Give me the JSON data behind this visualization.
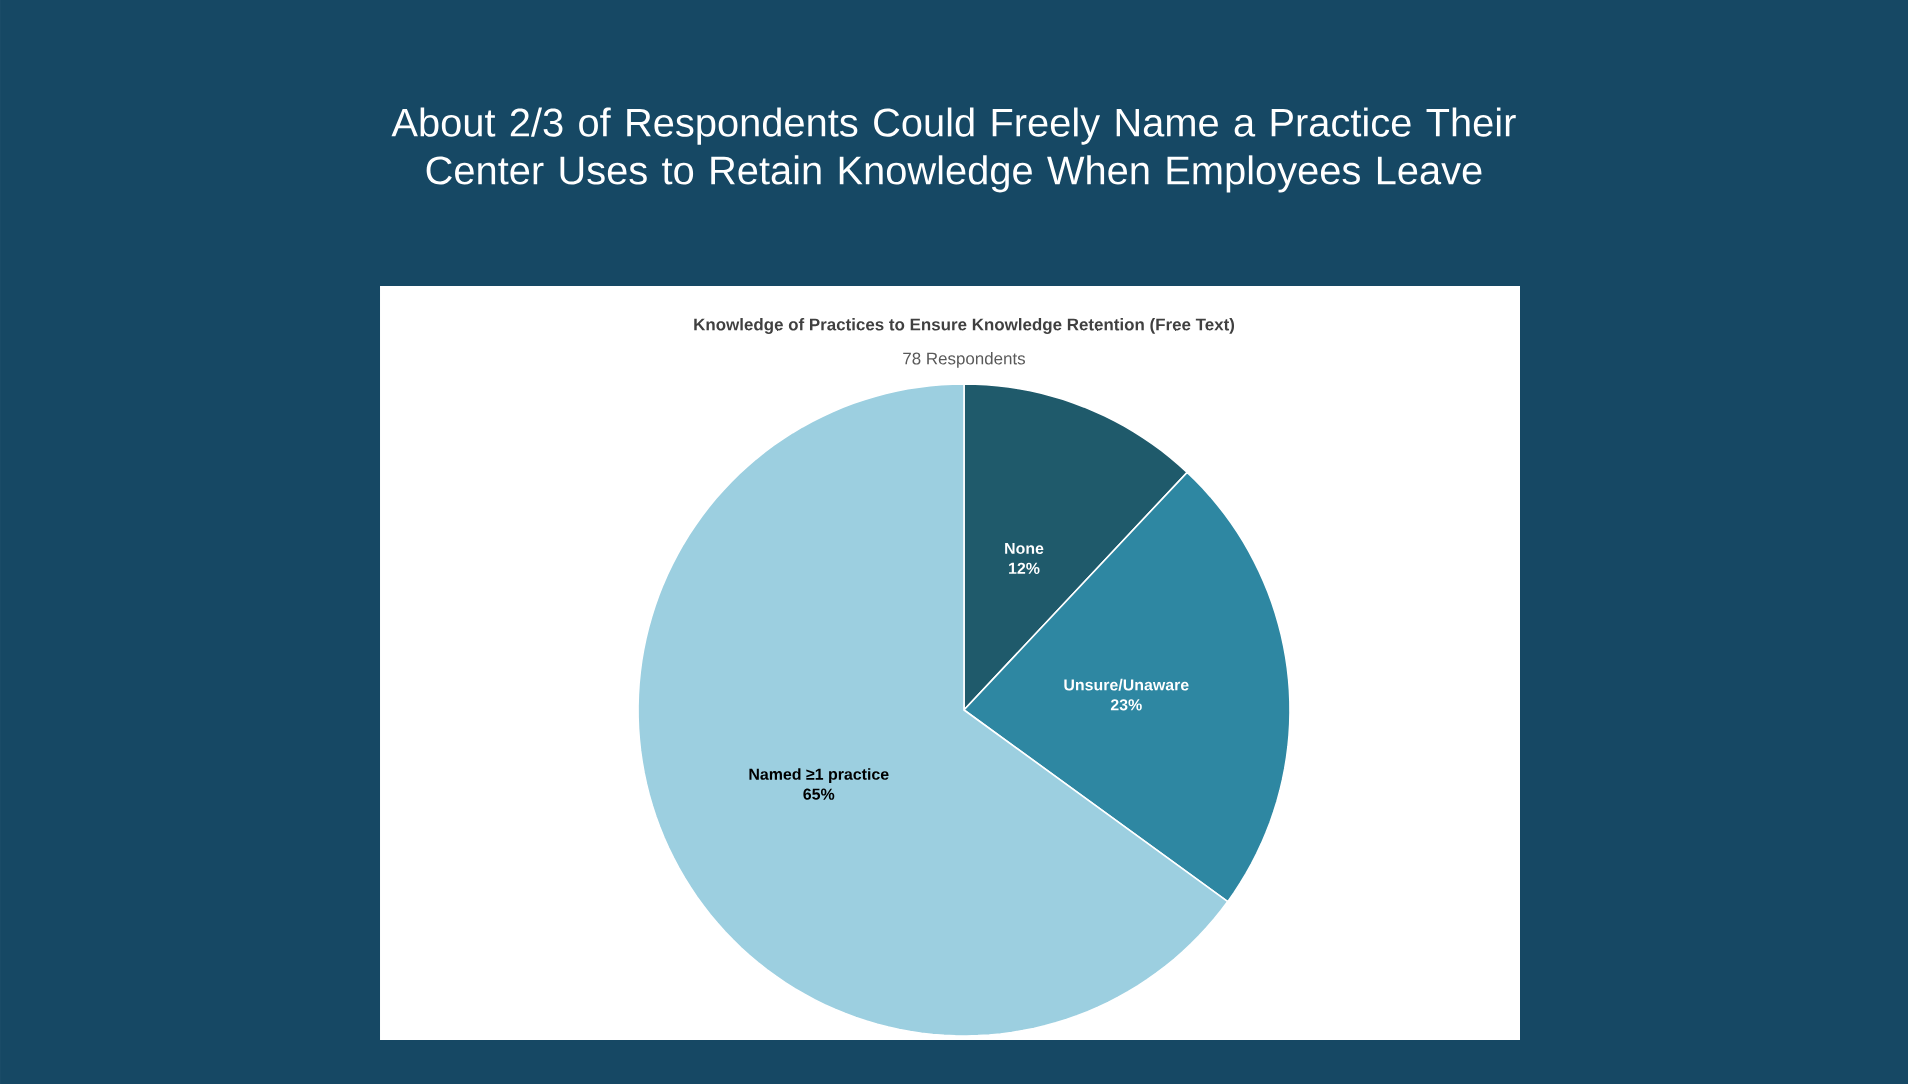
{
  "chart_data": {
    "type": "pie",
    "title": "About 2/3 of Respondents Could Freely Name a Practice Their Center Uses to Retain Knowledge When Employees Leave",
    "subtitle": "Knowledge of Practices to Ensure Knowledge Retention (Free Text)",
    "annotations": [
      "78 Respondents"
    ],
    "categories": [
      "None",
      "Unsure/Unaware",
      "Named ≥1 practice"
    ],
    "values": [
      12,
      23,
      65
    ],
    "value_labels": [
      "12%",
      "23%",
      "65%"
    ],
    "colors": [
      "#1f5a6b",
      "#2e87a2",
      "#9ccfe0"
    ]
  }
}
